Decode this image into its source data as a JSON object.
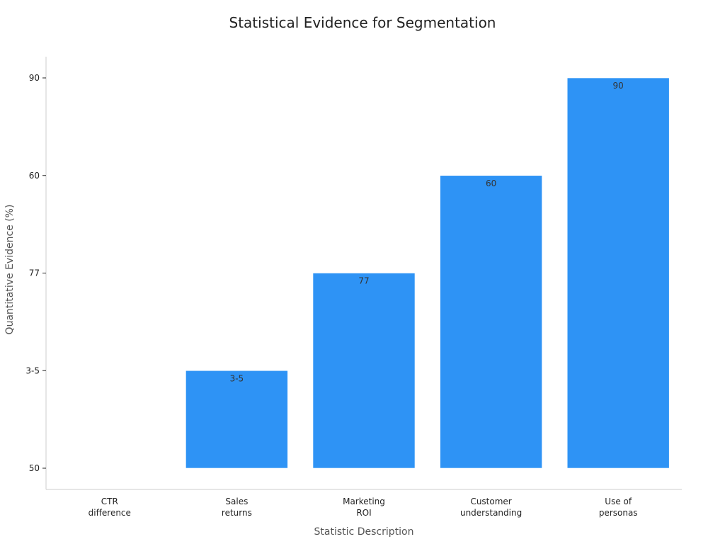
{
  "chart_data": {
    "type": "bar",
    "title": "Statistical Evidence for Segmentation",
    "xlabel": "Statistic Description",
    "ylabel": "Quantitative Evidence (%)",
    "categories": [
      "CTR\ndifference",
      "Sales\nreturns",
      "Marketing\nROI",
      "Customer\nunderstanding",
      "Use of\npersonas"
    ],
    "y_categories": [
      "50",
      "3-5",
      "77",
      "60",
      "90"
    ],
    "values": [
      "50",
      "3-5",
      "77",
      "60",
      "90"
    ],
    "data_labels": [
      "",
      "3-5",
      "77",
      "60",
      "90"
    ],
    "grid": false,
    "legend": "none",
    "bar_color": "#2e93f5"
  }
}
